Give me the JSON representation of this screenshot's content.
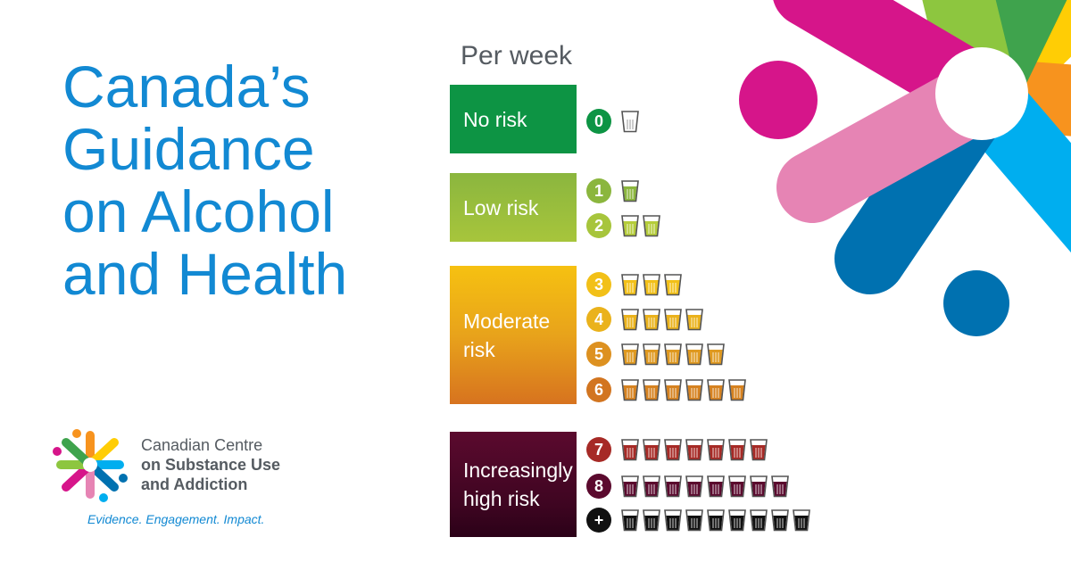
{
  "title": {
    "lines": [
      "Canada’s",
      "Guidance",
      "on Alcohol",
      "and Health"
    ]
  },
  "organization": {
    "name_line1": "Canadian Centre",
    "name_line2": "on Substance Use",
    "name_line3": "and Addiction",
    "tagline": "Evidence. Engagement. Impact.",
    "logo_icon": "ccsa-logo-icon"
  },
  "chart": {
    "header": "Per week",
    "bands": {
      "none": {
        "label": "No risk",
        "color": "#0d9444"
      },
      "low": {
        "label": "Low risk",
        "color": "#9bbf3d"
      },
      "moderate": {
        "label_line1": "Moderate",
        "label_line2": "risk",
        "color": "#e8a31b"
      },
      "high": {
        "label_line1": "Increasingly",
        "label_line2": "high risk",
        "color": "#44062a"
      }
    },
    "rows": [
      {
        "value": "0",
        "drinks": 0,
        "color": "#0d9444",
        "glass_fill": "#ffffff"
      },
      {
        "value": "1",
        "drinks": 1,
        "color": "#8bb63e",
        "glass_fill": "#8bb63e"
      },
      {
        "value": "2",
        "drinks": 2,
        "color": "#a7c53c",
        "glass_fill": "#b5cc3a"
      },
      {
        "value": "3",
        "drinks": 3,
        "color": "#f2c018",
        "glass_fill": "#f2c018"
      },
      {
        "value": "4",
        "drinks": 4,
        "color": "#eab21c",
        "glass_fill": "#eab21c"
      },
      {
        "value": "5",
        "drinks": 5,
        "color": "#dd9120",
        "glass_fill": "#df9920"
      },
      {
        "value": "6",
        "drinks": 6,
        "color": "#d27520",
        "glass_fill": "#d68220"
      },
      {
        "value": "7",
        "drinks": 7,
        "color": "#a62a26",
        "glass_fill": "#a62a26"
      },
      {
        "value": "8",
        "drinks": 8,
        "color": "#5b0a2e",
        "glass_fill": "#5b0a2e"
      },
      {
        "value": "+",
        "drinks": 9,
        "color": "#111111",
        "glass_fill": "#111111"
      }
    ]
  },
  "decoration": {
    "hero_icon": "ccsa-hero-graphic-icon",
    "colors": [
      "#d6158a",
      "#e684b4",
      "#8dc63f",
      "#3fa34d",
      "#ffcd05",
      "#f7931e",
      "#00aeef",
      "#0071b0"
    ]
  }
}
